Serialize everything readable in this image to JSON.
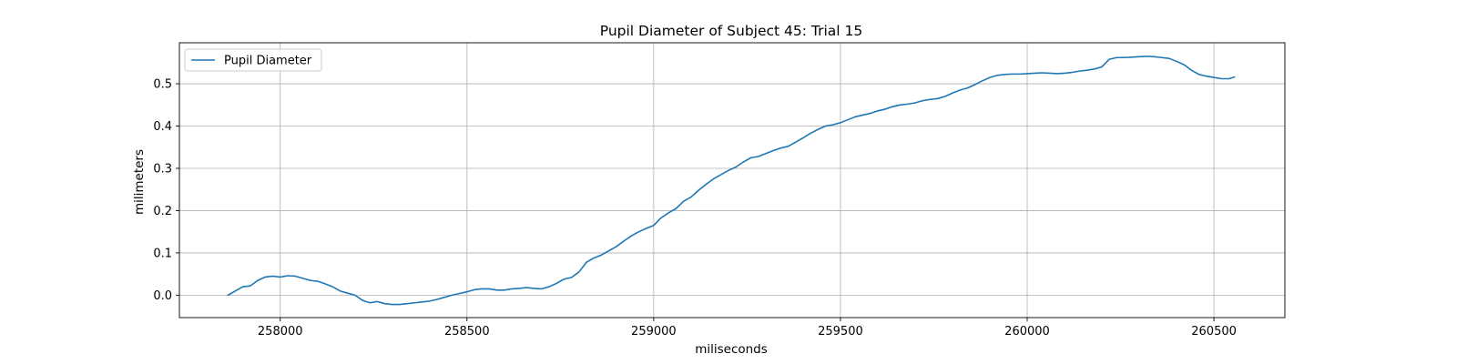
{
  "chart_data": {
    "type": "line",
    "title": "Pupil Diameter of Subject 45: Trial 15",
    "xlabel": "miliseconds",
    "ylabel": "milimeters",
    "xlim": [
      257730,
      260690
    ],
    "ylim": [
      -0.053,
      0.597
    ],
    "xticks": [
      258000,
      258500,
      259000,
      259500,
      260000,
      260500
    ],
    "yticks": [
      0.0,
      0.1,
      0.2,
      0.3,
      0.4,
      0.5
    ],
    "xtick_labels": [
      "258000",
      "258500",
      "259000",
      "259500",
      "260000",
      "260500"
    ],
    "ytick_labels": [
      "0.0",
      "0.1",
      "0.2",
      "0.3",
      "0.4",
      "0.5"
    ],
    "grid": true,
    "legend_position": "top-left",
    "series": [
      {
        "name": "Pupil Diameter",
        "color": "#1f77b4",
        "x": [
          257860,
          257880,
          257900,
          257920,
          257940,
          257960,
          257980,
          258000,
          258020,
          258040,
          258060,
          258080,
          258100,
          258120,
          258140,
          258160,
          258180,
          258200,
          258220,
          258240,
          258260,
          258280,
          258300,
          258320,
          258340,
          258360,
          258380,
          258400,
          258420,
          258440,
          258460,
          258480,
          258500,
          258520,
          258540,
          258560,
          258580,
          258600,
          258620,
          258640,
          258660,
          258680,
          258700,
          258720,
          258740,
          258760,
          258780,
          258800,
          258820,
          258840,
          258860,
          258880,
          258900,
          258920,
          258940,
          258960,
          258980,
          259000,
          259020,
          259040,
          259060,
          259080,
          259100,
          259120,
          259140,
          259160,
          259180,
          259200,
          259220,
          259240,
          259260,
          259280,
          259300,
          259320,
          259340,
          259360,
          259380,
          259400,
          259420,
          259440,
          259460,
          259480,
          259500,
          259520,
          259540,
          259560,
          259580,
          259600,
          259620,
          259640,
          259660,
          259680,
          259700,
          259720,
          259740,
          259760,
          259780,
          259800,
          259820,
          259840,
          259860,
          259880,
          259900,
          259920,
          259940,
          259960,
          259980,
          260000,
          260020,
          260040,
          260060,
          260080,
          260100,
          260120,
          260140,
          260160,
          260180,
          260200,
          260220,
          260240,
          260260,
          260280,
          260300,
          260320,
          260340,
          260360,
          260380,
          260400,
          260420,
          260440,
          260460,
          260480,
          260500,
          260520,
          260540,
          260555
        ],
        "y": [
          0.0,
          0.01,
          0.02,
          0.022,
          0.035,
          0.043,
          0.045,
          0.043,
          0.046,
          0.045,
          0.04,
          0.035,
          0.033,
          0.027,
          0.02,
          0.01,
          0.005,
          0.0,
          -0.012,
          -0.018,
          -0.015,
          -0.02,
          -0.022,
          -0.022,
          -0.02,
          -0.018,
          -0.016,
          -0.014,
          -0.01,
          -0.005,
          0.0,
          0.004,
          0.008,
          0.013,
          0.015,
          0.015,
          0.012,
          0.012,
          0.015,
          0.016,
          0.018,
          0.016,
          0.015,
          0.02,
          0.028,
          0.038,
          0.042,
          0.055,
          0.078,
          0.088,
          0.095,
          0.105,
          0.115,
          0.128,
          0.14,
          0.15,
          0.158,
          0.165,
          0.183,
          0.195,
          0.205,
          0.222,
          0.232,
          0.248,
          0.262,
          0.275,
          0.285,
          0.295,
          0.303,
          0.315,
          0.325,
          0.328,
          0.335,
          0.342,
          0.348,
          0.352,
          0.362,
          0.372,
          0.383,
          0.392,
          0.4,
          0.403,
          0.408,
          0.415,
          0.422,
          0.426,
          0.43,
          0.436,
          0.44,
          0.446,
          0.45,
          0.452,
          0.455,
          0.46,
          0.463,
          0.465,
          0.47,
          0.478,
          0.485,
          0.49,
          0.498,
          0.507,
          0.515,
          0.52,
          0.522,
          0.523,
          0.523,
          0.524,
          0.525,
          0.526,
          0.525,
          0.524,
          0.525,
          0.527,
          0.53,
          0.532,
          0.535,
          0.54,
          0.558,
          0.562,
          0.562,
          0.563,
          0.564,
          0.565,
          0.564,
          0.562,
          0.56,
          0.553,
          0.545,
          0.532,
          0.522,
          0.518,
          0.515,
          0.512,
          0.512,
          0.516
        ]
      }
    ]
  }
}
